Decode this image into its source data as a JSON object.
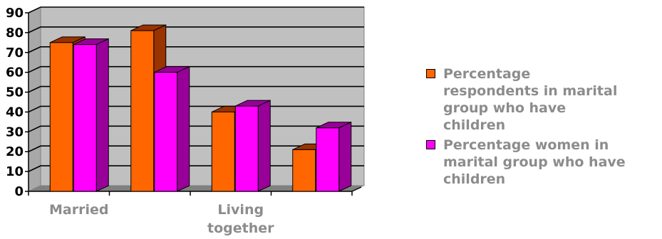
{
  "chart_data": {
    "type": "bar",
    "title": "",
    "xlabel": "",
    "ylabel": "",
    "ylim": [
      0,
      90
    ],
    "yticks": [
      0,
      10,
      20,
      30,
      40,
      50,
      60,
      70,
      80,
      90
    ],
    "grid": true,
    "legend_position": "right",
    "three_d": true,
    "categories": [
      "Married",
      "",
      "Living together",
      ""
    ],
    "category_labels_shown": [
      {
        "index": 0,
        "lines": [
          "Married"
        ]
      },
      {
        "index": 2,
        "lines": [
          "Living",
          "together"
        ]
      }
    ],
    "series": [
      {
        "name": "Percentage respondents in marital group who have children",
        "legend_lines": [
          "Percentage",
          "respondents in marital",
          "group who have",
          "children"
        ],
        "values": [
          75,
          81,
          40,
          21
        ],
        "color": "#ff6600",
        "side_color": "#993300"
      },
      {
        "name": "Percentage women in marital group who have children",
        "legend_lines": [
          "Percentage women in",
          "marital group who have",
          "children"
        ],
        "values": [
          74,
          60,
          43,
          32
        ],
        "color": "#ff00ff",
        "side_color": "#990099"
      }
    ]
  },
  "colors": {
    "plot_back": "#c0c0c0",
    "floor": "#808080",
    "axis": "#000000",
    "text_muted": "#8c8c8c"
  }
}
